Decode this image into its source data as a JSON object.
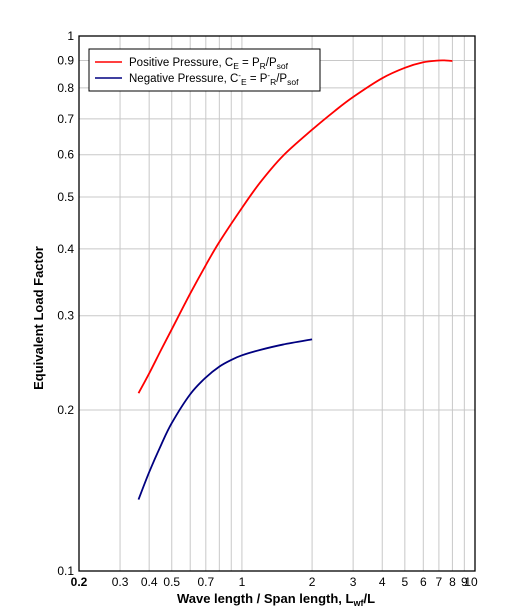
{
  "chart_data": {
    "type": "line",
    "xlabel": "Wave length / Span length, L",
    "xlabel_sub": "wf",
    "xlabel_tail": "/L",
    "ylabel": "Equivalent Load Factor",
    "xscale": "log",
    "yscale": "log",
    "xlim": [
      0.2,
      10
    ],
    "ylim": [
      0.1,
      1
    ],
    "grid": true,
    "legend_position": "top-left",
    "x_ticks": [
      {
        "value": 0.2,
        "label": "0.2",
        "bold": true
      },
      {
        "value": 0.3,
        "label": "0.3"
      },
      {
        "value": 0.4,
        "label": "0.4"
      },
      {
        "value": 0.5,
        "label": "0.5"
      },
      {
        "value": 0.7,
        "label": "0.7"
      },
      {
        "value": 1,
        "label": "1"
      },
      {
        "value": 2,
        "label": "2"
      },
      {
        "value": 3,
        "label": "3"
      },
      {
        "value": 4,
        "label": "4"
      },
      {
        "value": 5,
        "label": "5"
      },
      {
        "value": 6,
        "label": "6"
      },
      {
        "value": 7,
        "label": "7"
      },
      {
        "value": 8,
        "label": "8"
      },
      {
        "value": 9,
        "label": "9"
      },
      {
        "value": 10,
        "label": "10"
      }
    ],
    "y_ticks": [
      {
        "value": 0.1,
        "label": "0.1"
      },
      {
        "value": 0.2,
        "label": "0.2"
      },
      {
        "value": 0.3,
        "label": "0.3"
      },
      {
        "value": 0.4,
        "label": "0.4"
      },
      {
        "value": 0.5,
        "label": "0.5"
      },
      {
        "value": 0.6,
        "label": "0.6"
      },
      {
        "value": 0.7,
        "label": "0.7"
      },
      {
        "value": 0.8,
        "label": "0.8"
      },
      {
        "value": 0.9,
        "label": "0.9"
      },
      {
        "value": 1,
        "label": "1"
      }
    ],
    "x_minor_grid": [
      0.6,
      0.8,
      0.9
    ],
    "series": [
      {
        "name": "Positive Pressure",
        "legend_label": {
          "pre": "Positive Pressure, C",
          "sub1": "E",
          "mid1": " = P",
          "sub2": "R",
          "mid2": "/P",
          "sub3": "sof"
        },
        "color": "#ff0000",
        "x": [
          0.36,
          0.4,
          0.45,
          0.5,
          0.6,
          0.7,
          0.8,
          1.0,
          1.2,
          1.5,
          2.0,
          2.5,
          3.0,
          4.0,
          5.0,
          6.0,
          7.0,
          7.5,
          8.0
        ],
        "y": [
          0.215,
          0.234,
          0.259,
          0.283,
          0.33,
          0.373,
          0.412,
          0.477,
          0.533,
          0.597,
          0.668,
          0.724,
          0.769,
          0.834,
          0.872,
          0.893,
          0.9,
          0.9,
          0.898
        ]
      },
      {
        "name": "Negative Pressure",
        "legend_label": {
          "pre": "Negative Pressure, C",
          "sup1": "-",
          "sub1": "E",
          "mid1": " = P",
          "sup2": "-",
          "sub2": "R",
          "mid2": "/P",
          "sub3": "sof"
        },
        "color": "#000080",
        "x": [
          0.36,
          0.4,
          0.45,
          0.5,
          0.6,
          0.7,
          0.8,
          0.9,
          1.0,
          1.2,
          1.5,
          2.0
        ],
        "y": [
          0.136,
          0.153,
          0.172,
          0.189,
          0.214,
          0.23,
          0.241,
          0.248,
          0.253,
          0.259,
          0.265,
          0.271
        ]
      }
    ]
  }
}
